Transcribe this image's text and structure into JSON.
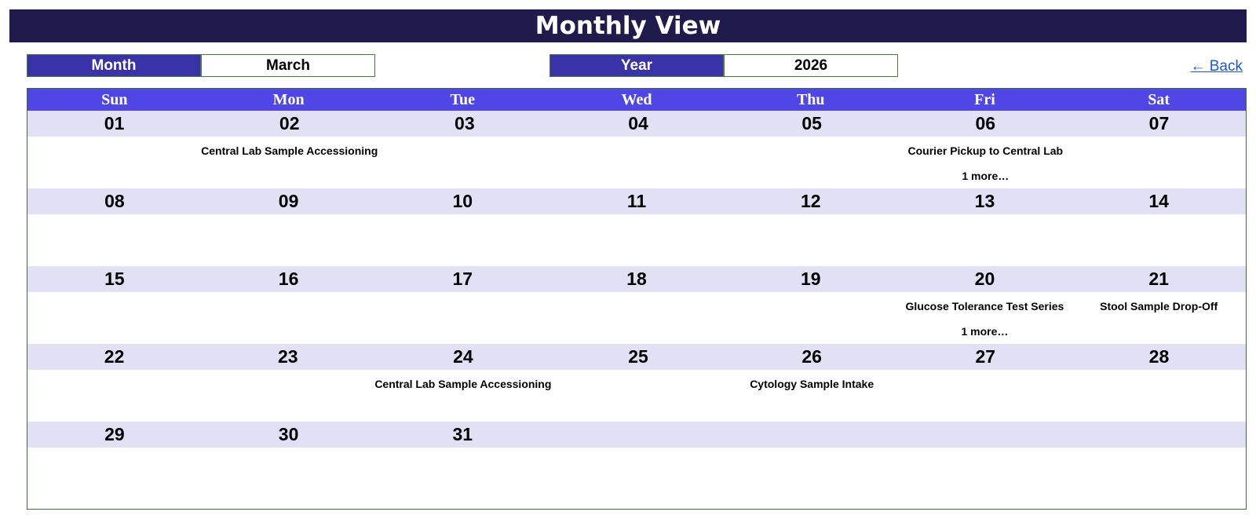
{
  "header": {
    "title": "Monthly View"
  },
  "month_picker": {
    "label": "Month",
    "value": "March"
  },
  "year_picker": {
    "label": "Year",
    "value": "2026"
  },
  "nav": {
    "back_label": "← Back"
  },
  "calendar": {
    "weekdays": [
      "Sun",
      "Mon",
      "Tue",
      "Wed",
      "Thu",
      "Fri",
      "Sat"
    ],
    "weeks": [
      [
        {
          "day": "01",
          "events": [],
          "more": ""
        },
        {
          "day": "02",
          "events": [
            "Central Lab Sample Accessioning"
          ],
          "more": ""
        },
        {
          "day": "03",
          "events": [],
          "more": ""
        },
        {
          "day": "04",
          "events": [],
          "more": ""
        },
        {
          "day": "05",
          "events": [],
          "more": ""
        },
        {
          "day": "06",
          "events": [
            "Courier Pickup to Central Lab"
          ],
          "more": "1 more…"
        },
        {
          "day": "07",
          "events": [],
          "more": ""
        }
      ],
      [
        {
          "day": "08",
          "events": [],
          "more": ""
        },
        {
          "day": "09",
          "events": [],
          "more": ""
        },
        {
          "day": "10",
          "events": [],
          "more": ""
        },
        {
          "day": "11",
          "events": [],
          "more": ""
        },
        {
          "day": "12",
          "events": [],
          "more": ""
        },
        {
          "day": "13",
          "events": [],
          "more": ""
        },
        {
          "day": "14",
          "events": [],
          "more": ""
        }
      ],
      [
        {
          "day": "15",
          "events": [],
          "more": ""
        },
        {
          "day": "16",
          "events": [],
          "more": ""
        },
        {
          "day": "17",
          "events": [],
          "more": ""
        },
        {
          "day": "18",
          "events": [],
          "more": ""
        },
        {
          "day": "19",
          "events": [],
          "more": ""
        },
        {
          "day": "20",
          "events": [
            "Glucose Tolerance Test Series"
          ],
          "more": "1 more…"
        },
        {
          "day": "21",
          "events": [
            "Stool Sample Drop-Off"
          ],
          "more": ""
        }
      ],
      [
        {
          "day": "22",
          "events": [],
          "more": ""
        },
        {
          "day": "23",
          "events": [],
          "more": ""
        },
        {
          "day": "24",
          "events": [
            "Central Lab Sample Accessioning"
          ],
          "more": ""
        },
        {
          "day": "25",
          "events": [],
          "more": ""
        },
        {
          "day": "26",
          "events": [
            "Cytology Sample Intake"
          ],
          "more": ""
        },
        {
          "day": "27",
          "events": [],
          "more": ""
        },
        {
          "day": "28",
          "events": [],
          "more": ""
        }
      ],
      [
        {
          "day": "29",
          "events": [],
          "more": ""
        },
        {
          "day": "30",
          "events": [],
          "more": ""
        },
        {
          "day": "31",
          "events": [],
          "more": ""
        }
      ]
    ]
  },
  "colors": {
    "title_bg": "#201b4d",
    "picker_label_bg": "#3a32a8",
    "weekday_bg": "#4f46e5",
    "day_num_bg": "#e2e0f5",
    "border": "#3f6b34",
    "link": "#1f56c9"
  }
}
